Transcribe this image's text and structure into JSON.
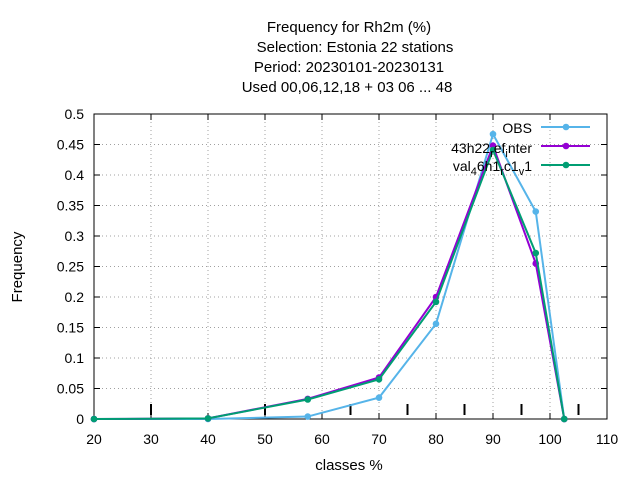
{
  "chart_data": {
    "type": "line",
    "title_lines": [
      "Frequency  for Rh2m (%)",
      "Selection: Estonia      22 stations",
      "Period: 20230101-20230131",
      "Used  00,06,12,18  + 03 06 ... 48"
    ],
    "xlabel": "classes %",
    "ylabel": "Frequency",
    "xlim": [
      20,
      110
    ],
    "ylim": [
      0,
      0.5
    ],
    "xticks": [
      20,
      30,
      40,
      50,
      60,
      70,
      80,
      90,
      100,
      110
    ],
    "yticks": [
      0,
      0.05,
      0.1,
      0.15,
      0.2,
      0.25,
      0.3,
      0.35,
      0.4,
      0.45,
      0.5
    ],
    "ytick_labels": [
      "0",
      "0.05",
      "0.1",
      "0.15",
      "0.2",
      "0.25",
      "0.3",
      "0.35",
      "0.4",
      "0.45",
      "0.5"
    ],
    "grid": true,
    "legend_position": "top-right",
    "class_marks_x": [
      30,
      50,
      65,
      75,
      85,
      95,
      105
    ],
    "series": [
      {
        "name": "OBS",
        "color": "#56b4e9",
        "x": [
          20,
          40,
          57.5,
          70,
          80,
          90,
          97.5,
          102.5
        ],
        "y": [
          0,
          0,
          0.004,
          0.035,
          0.156,
          0.467,
          0.34,
          0
        ]
      },
      {
        "name": "43h22_ref_inter",
        "legend_main": "43h22",
        "legend_sub1": "r",
        "legend_mid": "ef",
        "legend_sub2": "i",
        "legend_tail": "nter",
        "color": "#9400d3",
        "x": [
          20,
          40,
          57.5,
          70,
          80,
          90,
          97.5,
          102.5
        ],
        "y": [
          0,
          0.001,
          0.033,
          0.068,
          0.2,
          0.448,
          0.255,
          0
        ]
      },
      {
        "name": "val_46h1_c1_v1",
        "legend_main": "val",
        "legend_sub1": "4",
        "legend_mid": "6h1",
        "legend_sub2": "r",
        "legend_mid2": "c1",
        "legend_sub3": "v",
        "legend_tail": "1",
        "color": "#009e73",
        "x": [
          20,
          40,
          57.5,
          70,
          80,
          90,
          97.5,
          102.5
        ],
        "y": [
          0,
          0.001,
          0.032,
          0.065,
          0.192,
          0.441,
          0.272,
          0
        ]
      }
    ]
  }
}
